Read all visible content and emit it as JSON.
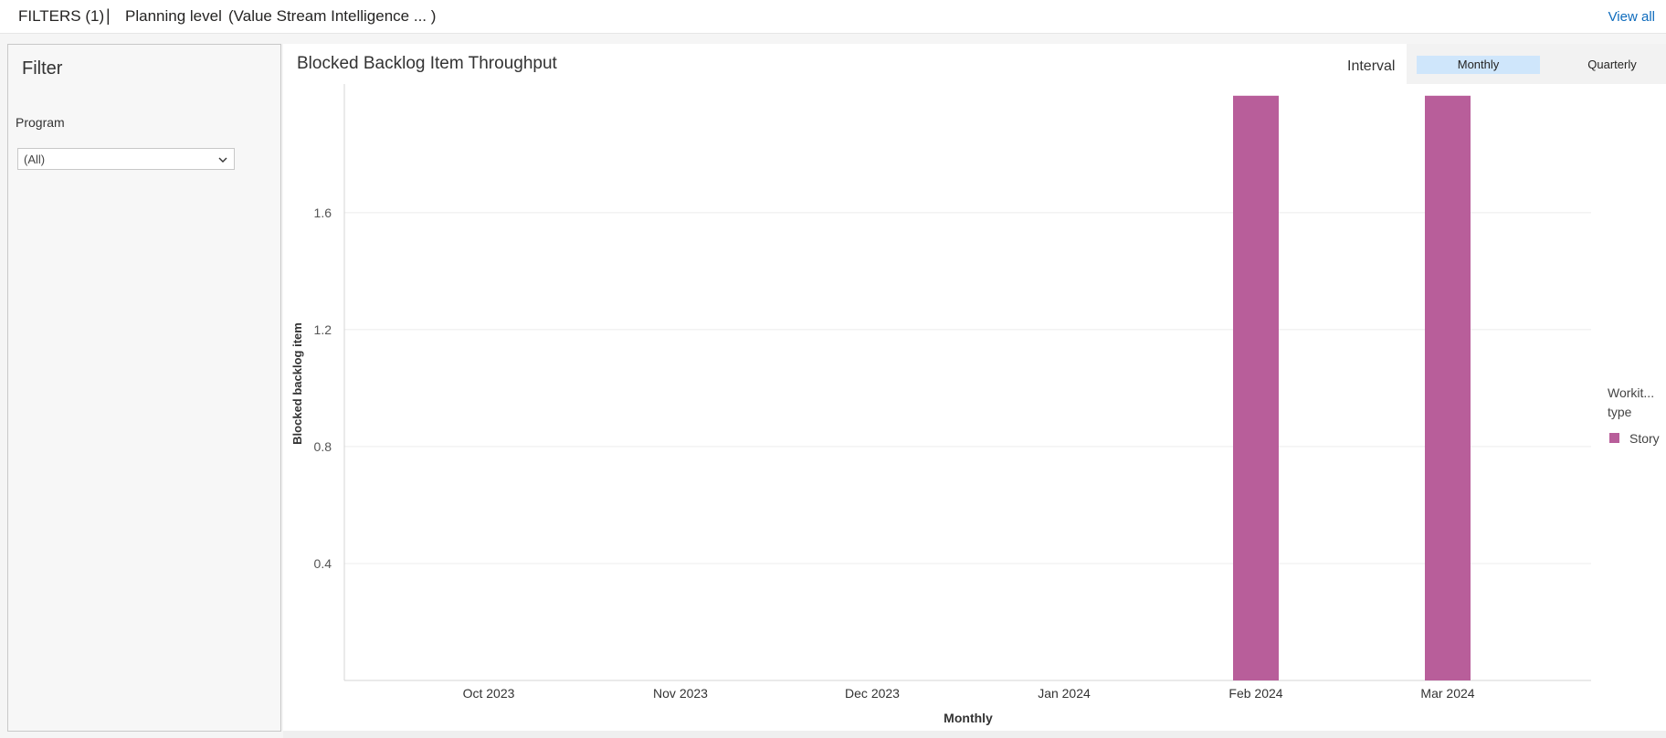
{
  "topbar": {
    "filters_label": "FILTERS (1)",
    "separator": "|",
    "planning_label": "Planning level",
    "planning_value": "(Value Stream Intelligence ... )",
    "view_all": "View all"
  },
  "filter_panel": {
    "title": "Filter",
    "program_label": "Program",
    "program_value": "(All)"
  },
  "chart_panel": {
    "interval_label": "Interval",
    "interval_options": [
      "Monthly",
      "Quarterly"
    ],
    "interval_selected": "Monthly"
  },
  "chart_data": {
    "type": "bar",
    "title": "Blocked Backlog Item Throughput",
    "xlabel": "Monthly",
    "ylabel": "Blocked backlog item",
    "categories": [
      "Oct 2023",
      "Nov 2023",
      "Dec 2023",
      "Jan 2024",
      "Feb 2024",
      "Mar 2024"
    ],
    "series": [
      {
        "name": "Story",
        "values": [
          0,
          0,
          0,
          0,
          2,
          2
        ],
        "color": "#b85e9a"
      }
    ],
    "yticks": [
      "0.4",
      "0.8",
      "1.2",
      "1.6"
    ],
    "ylim": [
      0,
      2.04
    ],
    "grid": true,
    "legend": {
      "title": "Workit... type",
      "placement": "right"
    }
  }
}
